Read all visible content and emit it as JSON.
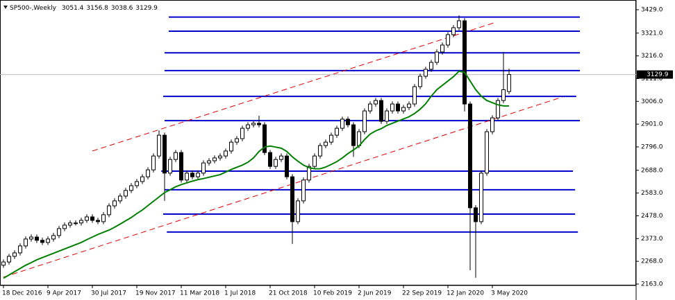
{
  "chart_data": {
    "type": "candlestick",
    "title": "SP500-,Weekly",
    "categories": [
      "18 Dec 2016",
      null,
      null,
      null,
      null,
      null,
      null,
      null,
      "9 Apr 2017",
      null,
      null,
      null,
      null,
      null,
      null,
      null,
      "30 Jul 2017",
      null,
      null,
      null,
      null,
      null,
      null,
      null,
      "19 Nov 2017",
      null,
      null,
      null,
      null,
      null,
      null,
      null,
      "11 Mar 2018",
      null,
      null,
      null,
      null,
      null,
      null,
      null,
      "1 Jul 2018",
      null,
      null,
      null,
      null,
      null,
      null,
      null,
      "21 Oct 2018",
      null,
      null,
      null,
      null,
      null,
      null,
      null,
      "10 Feb 2019",
      null,
      null,
      null,
      null,
      null,
      null,
      null,
      "2 Jun 2019",
      null,
      null,
      null,
      null,
      null,
      null,
      null,
      "22 Sep 2019",
      null,
      null,
      null,
      null,
      null,
      null,
      null,
      "12 Jan 2020",
      null,
      null,
      null,
      null,
      null,
      null,
      null,
      "3 May 2020",
      null,
      null,
      null
    ],
    "open": [
      2250,
      2265,
      2291,
      2307,
      2339,
      2371,
      2380,
      2365,
      2355,
      2371,
      2387,
      2419,
      2435,
      2445,
      2445,
      2457,
      2473,
      2457,
      2451,
      2483,
      2524,
      2547,
      2569,
      2595,
      2617,
      2636,
      2658,
      2690,
      2754,
      2850,
      2675,
      2738,
      2770,
      2643,
      2675,
      2658,
      2675,
      2722,
      2732,
      2745,
      2754,
      2777,
      2818,
      2834,
      2882,
      2898,
      2905,
      2898,
      2770,
      2706,
      2738,
      2754,
      2658,
      2451,
      2547,
      2643,
      2706,
      2754,
      2802,
      2818,
      2850,
      2882,
      2924,
      2898,
      2802,
      2866,
      2962,
      2994,
      3010,
      2914,
      2962,
      2994,
      2962,
      2978,
      2994,
      3074,
      3122,
      3154,
      3186,
      3234,
      3266,
      3314,
      3346,
      3378,
      2994,
      2515,
      2451,
      2675,
      2866,
      2930,
      3010,
      3051.4
    ],
    "high": [
      2277,
      2303,
      2319,
      2351,
      2383,
      2392,
      2392,
      2377,
      2383,
      2399,
      2431,
      2447,
      2457,
      2457,
      2469,
      2485,
      2485,
      2469,
      2495,
      2536,
      2559,
      2581,
      2607,
      2629,
      2648,
      2670,
      2702,
      2766,
      2872,
      2862,
      2750,
      2782,
      2782,
      2687,
      2687,
      2687,
      2734,
      2744,
      2757,
      2766,
      2789,
      2830,
      2846,
      2894,
      2910,
      2917,
      2940,
      2910,
      2782,
      2750,
      2766,
      2766,
      2670,
      2559,
      2655,
      2718,
      2766,
      2814,
      2830,
      2862,
      2894,
      2936,
      2936,
      2910,
      2878,
      2974,
      3006,
      3022,
      3022,
      2974,
      3006,
      3006,
      2990,
      3006,
      3086,
      3134,
      3166,
      3198,
      3246,
      3278,
      3326,
      3358,
      3403,
      3390,
      3006,
      2527,
      2687,
      2878,
      2942,
      3022,
      3234,
      3156.8
    ],
    "low": [
      2238,
      2253,
      2279,
      2295,
      2327,
      2359,
      2353,
      2343,
      2343,
      2359,
      2375,
      2407,
      2423,
      2433,
      2433,
      2445,
      2445,
      2439,
      2439,
      2471,
      2512,
      2535,
      2557,
      2583,
      2605,
      2624,
      2646,
      2678,
      2742,
      2547,
      2663,
      2726,
      2631,
      2631,
      2646,
      2646,
      2663,
      2710,
      2720,
      2733,
      2742,
      2765,
      2806,
      2822,
      2870,
      2886,
      2886,
      2758,
      2694,
      2694,
      2726,
      2646,
      2348,
      2439,
      2535,
      2631,
      2694,
      2742,
      2790,
      2806,
      2838,
      2870,
      2886,
      2750,
      2790,
      2854,
      2950,
      2982,
      2902,
      2902,
      2950,
      2950,
      2950,
      2966,
      2982,
      3062,
      3110,
      3142,
      3174,
      3222,
      3254,
      3302,
      3334,
      2960,
      2227,
      2192,
      2439,
      2663,
      2854,
      2918,
      2998,
      3038.6
    ],
    "close": [
      2265,
      2291,
      2307,
      2339,
      2371,
      2380,
      2365,
      2355,
      2371,
      2387,
      2419,
      2435,
      2445,
      2445,
      2457,
      2473,
      2457,
      2451,
      2483,
      2524,
      2547,
      2569,
      2595,
      2617,
      2636,
      2658,
      2690,
      2754,
      2850,
      2675,
      2738,
      2770,
      2643,
      2675,
      2658,
      2675,
      2722,
      2732,
      2745,
      2754,
      2777,
      2818,
      2834,
      2882,
      2898,
      2905,
      2898,
      2770,
      2706,
      2738,
      2754,
      2658,
      2451,
      2547,
      2643,
      2706,
      2754,
      2802,
      2818,
      2850,
      2882,
      2924,
      2898,
      2802,
      2866,
      2962,
      2994,
      3010,
      2914,
      2962,
      2994,
      2962,
      2978,
      2994,
      3074,
      3122,
      3154,
      3186,
      3234,
      3266,
      3314,
      3346,
      3378,
      2994,
      2515,
      2451,
      2675,
      2866,
      2930,
      3010,
      3060,
      3129.9
    ],
    "ma": [
      2190,
      2205,
      2220,
      2235,
      2250,
      2262,
      2275,
      2285,
      2295,
      2305,
      2315,
      2325,
      2335,
      2345,
      2355,
      2368,
      2380,
      2392,
      2402,
      2412,
      2425,
      2440,
      2455,
      2470,
      2488,
      2505,
      2525,
      2545,
      2565,
      2585,
      2598,
      2612,
      2622,
      2630,
      2638,
      2645,
      2650,
      2656,
      2662,
      2668,
      2680,
      2692,
      2702,
      2712,
      2725,
      2745,
      2775,
      2795,
      2800,
      2795,
      2790,
      2775,
      2750,
      2730,
      2712,
      2700,
      2695,
      2695,
      2703,
      2715,
      2728,
      2745,
      2765,
      2782,
      2800,
      2830,
      2855,
      2870,
      2880,
      2895,
      2905,
      2915,
      2925,
      2935,
      2950,
      2970,
      2995,
      3030,
      3060,
      3080,
      3100,
      3120,
      3145,
      3140,
      3100,
      3060,
      3030,
      3010,
      3000,
      2990,
      2985,
      2985
    ],
    "ma_color": "#008000",
    "up_color": "#ffffff",
    "down_color": "#000000",
    "hlines": [
      {
        "y": 3395,
        "x": [
          29.75,
          103.75
        ]
      },
      {
        "y": 3330,
        "x": [
          29.75,
          103.75
        ]
      },
      {
        "y": 3230,
        "x": [
          29,
          103.75
        ]
      },
      {
        "y": 3148,
        "x": [
          29,
          103.75
        ]
      },
      {
        "y": 3029,
        "x": [
          28.75,
          103.1
        ]
      },
      {
        "y": 2917,
        "x": [
          29,
          103.75
        ]
      },
      {
        "y": 2684,
        "x": [
          28.4,
          102.5
        ]
      },
      {
        "y": 2598,
        "x": [
          29,
          102.9
        ]
      },
      {
        "y": 2486,
        "x": [
          28.75,
          102.9
        ]
      },
      {
        "y": 2403,
        "x": [
          29.4,
          103.4
        ]
      }
    ],
    "hline_color": "#0000cc",
    "trendlines": [
      {
        "x": [
          16,
          88.75
        ],
        "y": [
          2777,
          3372
        ]
      },
      {
        "x": [
          0,
          100.6
        ],
        "y": [
          2195,
          3026
        ]
      }
    ],
    "trend_color": "#dd0000",
    "ylim": [
      2156.6,
      3473.8
    ],
    "yticks": [
      {
        "value": 3429,
        "label": "3429.0"
      },
      {
        "value": 3321,
        "label": "3321.0"
      },
      {
        "value": 3216,
        "label": "3216.0"
      },
      {
        "value": 3111,
        "label": "3111.0"
      },
      {
        "value": 3006,
        "label": "3006.0"
      },
      {
        "value": 2901,
        "label": "2901.0"
      },
      {
        "value": 2796,
        "label": "2796.0"
      },
      {
        "value": 2688,
        "label": "2688.0"
      },
      {
        "value": 2583,
        "label": "2583.0"
      },
      {
        "value": 2478,
        "label": "2478.0"
      },
      {
        "value": 2373,
        "label": "2373.0"
      },
      {
        "value": 2268,
        "label": "2268.0"
      },
      {
        "value": 2163,
        "label": "2163.0"
      }
    ]
  }
}
